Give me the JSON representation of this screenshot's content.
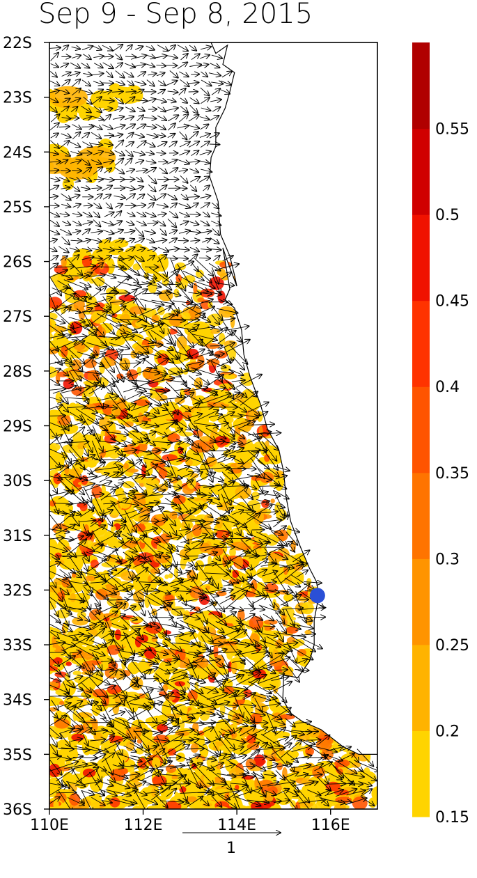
{
  "title": "Sep 9 - Sep 8, 2015",
  "map": {
    "lon_range": [
      110,
      117
    ],
    "lat_range": [
      -36,
      -22
    ],
    "lat_ticks": [
      "22S",
      "23S",
      "24S",
      "25S",
      "26S",
      "27S",
      "28S",
      "29S",
      "30S",
      "31S",
      "32S",
      "33S",
      "34S",
      "35S",
      "36S"
    ],
    "lon_ticks": [
      "110E",
      "112E",
      "114E",
      "116E"
    ],
    "marker": {
      "lon": 115.72,
      "lat": -32.1,
      "color": "#2a4fd6"
    },
    "coastline_color": "#000000",
    "vector_color": "#000000"
  },
  "colorbar": {
    "levels": [
      0.15,
      0.2,
      0.25,
      0.3,
      0.35,
      0.4,
      0.45,
      0.5,
      0.55,
      0.6
    ],
    "labels": [
      "0.15",
      "0.2",
      "0.25",
      "0.3",
      "0.35",
      "0.4",
      "0.45",
      "0.5",
      "0.55"
    ],
    "colors": [
      "#ffd400",
      "#ffb300",
      "#ff9400",
      "#ff7400",
      "#ff5400",
      "#ff3300",
      "#f01200",
      "#d00000",
      "#b00000"
    ]
  },
  "reference_vector": {
    "label": "1"
  }
}
